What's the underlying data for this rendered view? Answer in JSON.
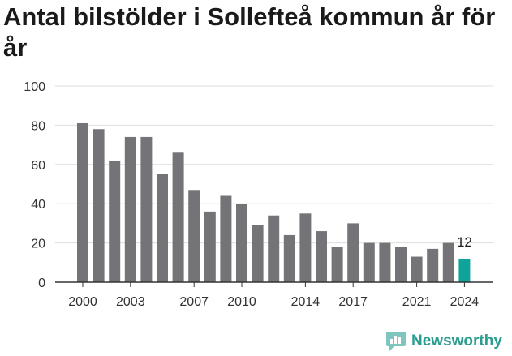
{
  "title": "Antal bilstölder i Sollefteå kommun år för år",
  "brand": {
    "name": "Newsworthy",
    "icon": "newsworthy-bar-chart-icon",
    "color": "#2a9d8f"
  },
  "colors": {
    "bar": "#747478",
    "highlight": "#0fa39a",
    "grid": "#dddddd",
    "axis": "#333333"
  },
  "chart_data": {
    "type": "bar",
    "title": "Antal bilstölder i Sollefteå kommun år för år",
    "xlabel": "",
    "ylabel": "",
    "ylim": [
      0,
      100
    ],
    "yticks": [
      0,
      20,
      40,
      60,
      80,
      100
    ],
    "grid": true,
    "categories": [
      2000,
      2001,
      2002,
      2003,
      2004,
      2005,
      2006,
      2007,
      2008,
      2009,
      2010,
      2011,
      2012,
      2013,
      2014,
      2015,
      2016,
      2017,
      2018,
      2019,
      2020,
      2021,
      2022,
      2023,
      2024
    ],
    "values": [
      81,
      78,
      62,
      74,
      74,
      55,
      66,
      47,
      36,
      44,
      40,
      29,
      34,
      24,
      35,
      26,
      18,
      30,
      20,
      20,
      18,
      13,
      17,
      20,
      12
    ],
    "xtick_labels": [
      2000,
      2003,
      2007,
      2010,
      2014,
      2017,
      2021,
      2024
    ],
    "highlight": {
      "category": 2024,
      "label": "12"
    }
  }
}
